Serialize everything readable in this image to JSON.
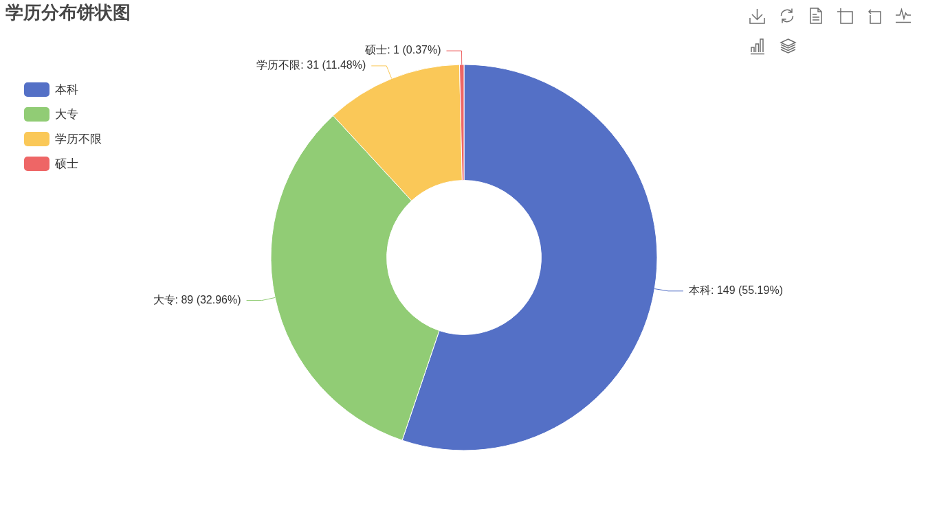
{
  "chart_data": {
    "type": "donut",
    "title": "学历分布饼状图",
    "categories": [
      "本科",
      "大专",
      "学历不限",
      "硕士"
    ],
    "values": [
      149,
      89,
      31,
      1
    ],
    "colors": [
      "#5470c6",
      "#91cc75",
      "#fac858",
      "#ee6666"
    ],
    "value_labels": [
      "本科: 149 (55.19%)",
      "大专: 89 (32.96%)",
      "学历不限: 31 (11.48%)",
      "硕士: 1 (0.37%)"
    ],
    "legend": "top left"
  }
}
